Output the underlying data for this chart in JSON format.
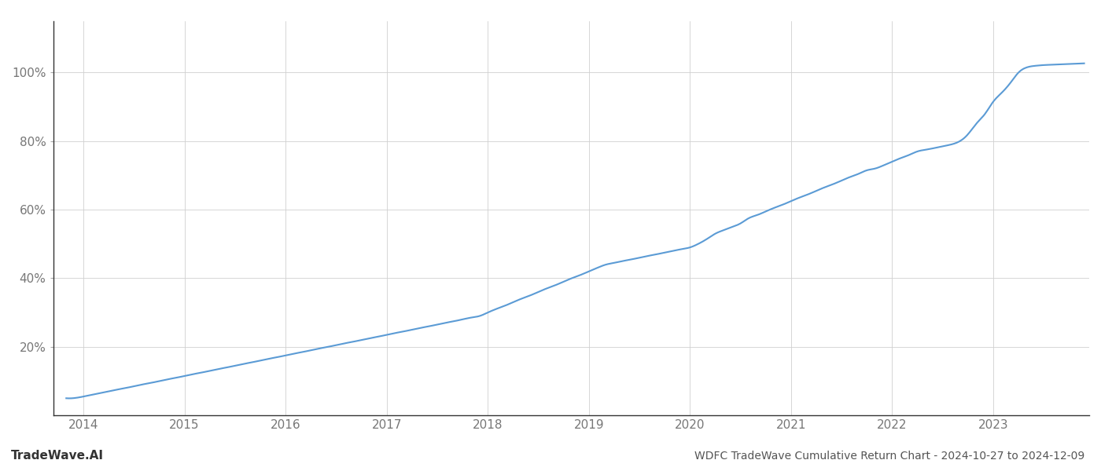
{
  "title": "WDFC TradeWave Cumulative Return Chart - 2024-10-27 to 2024-12-09",
  "watermark": "TradeWave.AI",
  "line_color": "#5b9bd5",
  "background_color": "#ffffff",
  "grid_color": "#d0d0d0",
  "x_years": [
    2014,
    2015,
    2016,
    2017,
    2018,
    2019,
    2020,
    2021,
    2022,
    2023
  ],
  "x_data": [
    2013.83,
    2014.0,
    2014.08,
    2014.17,
    2014.25,
    2014.33,
    2014.42,
    2014.5,
    2014.58,
    2014.67,
    2014.75,
    2014.83,
    2014.92,
    2015.0,
    2015.08,
    2015.17,
    2015.25,
    2015.33,
    2015.42,
    2015.5,
    2015.58,
    2015.67,
    2015.75,
    2015.83,
    2015.92,
    2016.0,
    2016.08,
    2016.17,
    2016.25,
    2016.33,
    2016.42,
    2016.5,
    2016.58,
    2016.67,
    2016.75,
    2016.83,
    2016.92,
    2017.0,
    2017.08,
    2017.17,
    2017.25,
    2017.33,
    2017.42,
    2017.5,
    2017.58,
    2017.67,
    2017.75,
    2017.83,
    2017.92,
    2018.0,
    2018.08,
    2018.17,
    2018.25,
    2018.33,
    2018.42,
    2018.5,
    2018.58,
    2018.67,
    2018.75,
    2018.83,
    2018.92,
    2019.0,
    2019.08,
    2019.17,
    2019.25,
    2019.33,
    2019.42,
    2019.5,
    2019.58,
    2019.67,
    2019.75,
    2019.83,
    2019.92,
    2020.0,
    2020.08,
    2020.17,
    2020.25,
    2020.33,
    2020.42,
    2020.5,
    2020.58,
    2020.67,
    2020.75,
    2020.83,
    2020.92,
    2021.0,
    2021.08,
    2021.17,
    2021.25,
    2021.33,
    2021.42,
    2021.5,
    2021.58,
    2021.67,
    2021.75,
    2021.83,
    2021.92,
    2022.0,
    2022.08,
    2022.17,
    2022.25,
    2022.33,
    2022.42,
    2022.5,
    2022.58,
    2022.67,
    2022.75,
    2022.83,
    2022.92,
    2023.0,
    2023.08,
    2023.17,
    2023.25,
    2023.33,
    2023.42,
    2023.5,
    2023.58,
    2023.67,
    2023.75,
    2023.83,
    2023.9
  ],
  "y_data": [
    5.0,
    5.5,
    6.0,
    6.5,
    7.0,
    7.5,
    8.0,
    8.5,
    9.0,
    9.5,
    10.0,
    10.5,
    11.0,
    11.5,
    12.0,
    12.5,
    13.0,
    13.5,
    14.0,
    14.5,
    15.0,
    15.5,
    16.0,
    16.5,
    17.0,
    17.5,
    18.0,
    18.5,
    19.0,
    19.5,
    20.0,
    20.5,
    21.0,
    21.5,
    22.0,
    22.5,
    23.0,
    23.5,
    24.0,
    24.5,
    25.0,
    25.5,
    26.0,
    26.5,
    27.0,
    27.5,
    28.0,
    28.5,
    29.0,
    30.0,
    31.0,
    32.0,
    33.0,
    34.0,
    35.0,
    36.0,
    37.0,
    38.0,
    39.0,
    40.0,
    41.0,
    42.0,
    43.0,
    44.0,
    44.5,
    45.0,
    45.5,
    46.0,
    46.5,
    47.0,
    47.5,
    48.0,
    48.5,
    49.0,
    50.0,
    51.5,
    53.0,
    54.0,
    55.0,
    56.0,
    57.5,
    58.5,
    59.5,
    60.5,
    61.5,
    62.5,
    63.5,
    64.5,
    65.5,
    66.5,
    67.5,
    68.5,
    69.5,
    70.5,
    71.5,
    72.0,
    73.0,
    74.0,
    75.0,
    76.0,
    77.0,
    77.5,
    78.0,
    78.5,
    79.0,
    80.0,
    82.0,
    85.0,
    88.0,
    91.5,
    94.0,
    97.0,
    100.0,
    101.5,
    102.0,
    102.2,
    102.3,
    102.4,
    102.5,
    102.6,
    102.7
  ],
  "yticks": [
    20,
    40,
    60,
    80,
    100
  ],
  "ylim": [
    0,
    115
  ],
  "xlim": [
    2013.7,
    2023.95
  ],
  "title_fontsize": 10,
  "watermark_fontsize": 11,
  "axis_fontsize": 11,
  "line_width": 1.5
}
